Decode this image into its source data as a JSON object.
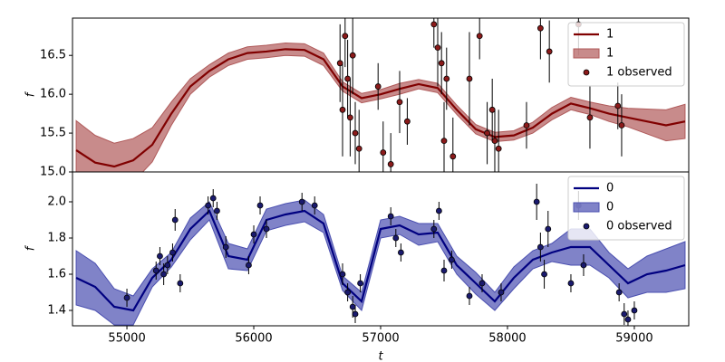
{
  "chart_data": [
    {
      "type": "line",
      "ylabel": "f",
      "legend": "upper right",
      "x": [
        54600,
        54750,
        54900,
        55050,
        55200,
        55350,
        55500,
        55650,
        55800,
        55950,
        56100,
        56250,
        56400,
        56550,
        56700,
        56850,
        57000,
        57150,
        57300,
        57450,
        57600,
        57750,
        57900,
        58050,
        58200,
        58350,
        58500,
        58650,
        58800,
        58950,
        59100,
        59250,
        59400
      ],
      "xlim": [
        54571,
        59429
      ],
      "ylim": [
        15.0,
        16.98
      ],
      "yticks": [
        {
          "value": 15.0,
          "label": "15.0"
        },
        15.5,
        {
          "value": 16.0,
          "label": "16.0"
        },
        16.5
      ],
      "series": [
        {
          "name": "1",
          "color": "#800000",
          "values": [
            15.28,
            15.12,
            15.07,
            15.15,
            15.35,
            15.75,
            16.1,
            16.3,
            16.45,
            16.53,
            16.55,
            16.58,
            16.57,
            16.45,
            16.1,
            15.95,
            16.0,
            16.07,
            16.13,
            16.08,
            15.8,
            15.55,
            15.45,
            15.47,
            15.57,
            15.75,
            15.88,
            15.82,
            15.75,
            15.7,
            15.65,
            15.6,
            15.65
          ]
        },
        {
          "name": "1",
          "color": "#b05a5a",
          "lower": [
            14.9,
            14.77,
            14.77,
            14.87,
            15.13,
            15.6,
            16.0,
            16.22,
            16.37,
            16.45,
            16.47,
            16.5,
            16.49,
            16.37,
            16.04,
            15.89,
            15.94,
            16.0,
            16.07,
            16.02,
            15.74,
            15.49,
            15.39,
            15.41,
            15.5,
            15.67,
            15.8,
            15.74,
            15.65,
            15.58,
            15.49,
            15.4,
            15.43
          ],
          "upper": [
            15.66,
            15.47,
            15.37,
            15.43,
            15.57,
            15.9,
            16.2,
            16.38,
            16.53,
            16.61,
            16.63,
            16.66,
            16.65,
            16.53,
            16.16,
            16.01,
            16.06,
            16.14,
            16.19,
            16.14,
            15.86,
            15.61,
            15.51,
            15.53,
            15.64,
            15.83,
            15.96,
            15.9,
            15.85,
            15.82,
            15.81,
            15.8,
            15.87
          ]
        },
        {
          "name": "1 observed",
          "color": "#8b1a1a",
          "x": [
            56680,
            56700,
            56720,
            56740,
            56760,
            56780,
            56800,
            56830,
            56980,
            57020,
            57080,
            57150,
            57210,
            57420,
            57450,
            57480,
            57500,
            57520,
            57570,
            57700,
            57780,
            57840,
            57880,
            57900,
            57930,
            58150,
            58260,
            58330,
            58560,
            58650,
            58870,
            58900
          ],
          "values": [
            16.4,
            15.8,
            16.75,
            16.2,
            15.7,
            16.5,
            15.5,
            15.3,
            16.1,
            15.25,
            15.1,
            15.9,
            15.65,
            16.9,
            16.6,
            16.4,
            15.4,
            16.2,
            15.2,
            16.2,
            16.75,
            15.5,
            15.8,
            15.4,
            15.3,
            15.6,
            16.85,
            16.55,
            16.9,
            15.7,
            15.85,
            15.6
          ],
          "errors": [
            0.5,
            0.6,
            0.4,
            0.5,
            0.5,
            0.5,
            0.4,
            0.5,
            0.3,
            0.4,
            0.4,
            0.4,
            0.3,
            0.3,
            0.5,
            0.4,
            0.5,
            0.4,
            0.5,
            0.6,
            0.3,
            0.4,
            0.4,
            0.4,
            0.5,
            0.3,
            0.4,
            0.4,
            0.4,
            0.4,
            0.3,
            0.4
          ]
        }
      ]
    },
    {
      "type": "line",
      "ylabel": "f",
      "xlabel": "t",
      "legend": "upper right",
      "x": [
        54600,
        54750,
        54900,
        55050,
        55200,
        55350,
        55500,
        55650,
        55800,
        55950,
        56100,
        56250,
        56400,
        56550,
        56700,
        56850,
        57000,
        57150,
        57300,
        57450,
        57600,
        57750,
        57900,
        58050,
        58200,
        58350,
        58500,
        58650,
        58800,
        58950,
        59100,
        59250,
        59400
      ],
      "xlim": [
        54571,
        59429
      ],
      "ylim": [
        1.315,
        2.165
      ],
      "xticks": [
        55000,
        56000,
        57000,
        58000,
        59000
      ],
      "yticks": [
        1.4,
        1.6,
        1.8,
        {
          "value": 2.0,
          "label": "2.0"
        }
      ],
      "series": [
        {
          "name": "0",
          "color": "#000080",
          "values": [
            1.58,
            1.53,
            1.42,
            1.4,
            1.58,
            1.68,
            1.85,
            1.95,
            1.7,
            1.68,
            1.9,
            1.93,
            1.95,
            1.88,
            1.55,
            1.45,
            1.85,
            1.87,
            1.82,
            1.83,
            1.65,
            1.55,
            1.45,
            1.58,
            1.68,
            1.72,
            1.75,
            1.75,
            1.65,
            1.55,
            1.6,
            1.62,
            1.65
          ]
        },
        {
          "name": "0",
          "color": "#4a4fb0",
          "lower": [
            1.43,
            1.4,
            1.32,
            1.32,
            1.53,
            1.64,
            1.79,
            1.9,
            1.63,
            1.62,
            1.84,
            1.87,
            1.89,
            1.83,
            1.51,
            1.4,
            1.8,
            1.82,
            1.76,
            1.78,
            1.6,
            1.49,
            1.4,
            1.52,
            1.63,
            1.67,
            1.65,
            1.65,
            1.58,
            1.47,
            1.5,
            1.5,
            1.52
          ],
          "upper": [
            1.73,
            1.66,
            1.52,
            1.48,
            1.63,
            1.72,
            1.91,
            2.0,
            1.77,
            1.74,
            1.96,
            1.99,
            2.01,
            1.93,
            1.59,
            1.5,
            1.9,
            1.92,
            1.88,
            1.88,
            1.7,
            1.61,
            1.5,
            1.64,
            1.73,
            1.77,
            1.85,
            1.85,
            1.72,
            1.63,
            1.7,
            1.74,
            1.78
          ]
        },
        {
          "name": "0 observed",
          "color": "#1a1a6e",
          "x": [
            55000,
            55230,
            55260,
            55290,
            55320,
            55360,
            55380,
            55420,
            55640,
            55680,
            55710,
            55780,
            55960,
            56000,
            56050,
            56100,
            56380,
            56480,
            56700,
            56740,
            56780,
            56800,
            56840,
            57080,
            57120,
            57160,
            57420,
            57460,
            57500,
            57560,
            57700,
            57800,
            57950,
            58230,
            58260,
            58290,
            58320,
            58500,
            58560,
            58600,
            58880,
            58920,
            58950,
            59000
          ],
          "values": [
            1.47,
            1.62,
            1.7,
            1.6,
            1.65,
            1.72,
            1.9,
            1.55,
            1.98,
            2.02,
            1.95,
            1.75,
            1.65,
            1.82,
            1.98,
            1.85,
            2.0,
            1.98,
            1.6,
            1.5,
            1.42,
            1.38,
            1.55,
            1.92,
            1.8,
            1.72,
            1.85,
            1.95,
            1.62,
            1.68,
            1.48,
            1.55,
            1.5,
            2.0,
            1.75,
            1.6,
            1.85,
            1.55,
            1.98,
            1.65,
            1.5,
            1.38,
            1.35,
            1.4
          ],
          "errors": [
            0.05,
            0.05,
            0.05,
            0.06,
            0.05,
            0.05,
            0.06,
            0.05,
            0.05,
            0.05,
            0.05,
            0.06,
            0.05,
            0.05,
            0.05,
            0.05,
            0.05,
            0.05,
            0.06,
            0.05,
            0.06,
            0.05,
            0.05,
            0.05,
            0.05,
            0.05,
            0.05,
            0.05,
            0.06,
            0.05,
            0.05,
            0.05,
            0.05,
            0.1,
            0.08,
            0.08,
            0.1,
            0.05,
            0.08,
            0.06,
            0.05,
            0.06,
            0.05,
            0.05
          ]
        }
      ]
    }
  ]
}
